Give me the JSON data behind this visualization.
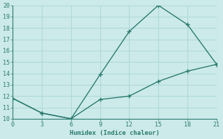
{
  "line1_x": [
    0,
    3,
    6,
    9,
    12,
    15,
    18,
    21
  ],
  "line1_y": [
    11.8,
    10.5,
    10.0,
    13.9,
    17.7,
    20.0,
    18.3,
    14.8
  ],
  "line2_x": [
    0,
    3,
    6,
    9,
    12,
    15,
    18,
    21
  ],
  "line2_y": [
    11.8,
    10.5,
    10.0,
    11.7,
    12.0,
    13.3,
    14.2,
    14.8
  ],
  "color": "#2a7a6e",
  "xlabel": "Humidex (Indice chaleur)",
  "ylim": [
    10,
    20
  ],
  "xlim": [
    0,
    21
  ],
  "yticks": [
    10,
    11,
    12,
    13,
    14,
    15,
    16,
    17,
    18,
    19,
    20
  ],
  "xticks": [
    0,
    3,
    6,
    9,
    12,
    15,
    18,
    21
  ],
  "bg_color": "#cceaea",
  "grid_color": "#b0d8d8"
}
